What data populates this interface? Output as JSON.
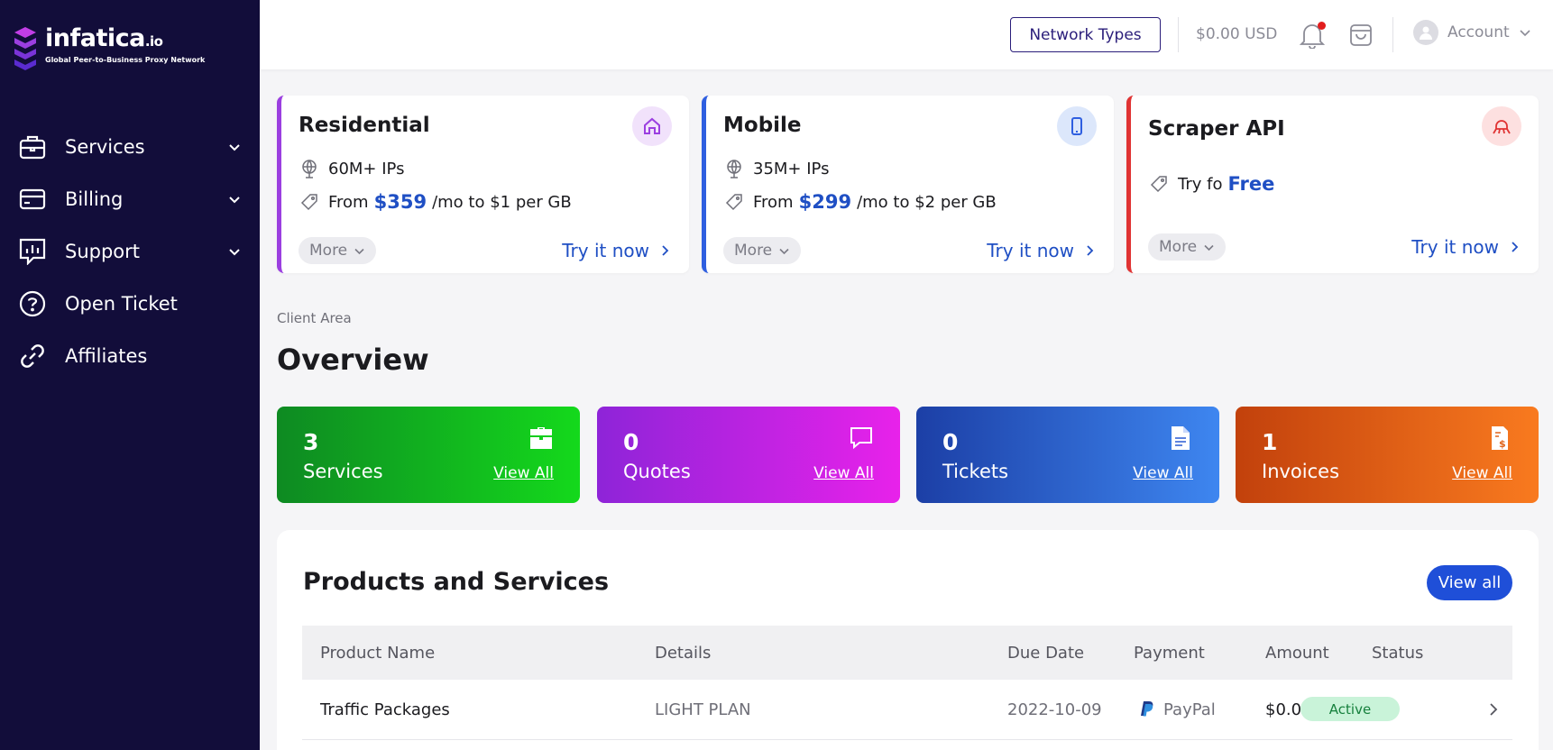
{
  "brand": {
    "name": "infatica",
    "tld": ".io",
    "tagline": "Global Peer-to-Business Proxy Network"
  },
  "sidebar": {
    "items": [
      {
        "label": "Services",
        "icon": "briefcase-icon",
        "expandable": true
      },
      {
        "label": "Billing",
        "icon": "credit-card-icon",
        "expandable": true
      },
      {
        "label": "Support",
        "icon": "chart-support-icon",
        "expandable": true
      },
      {
        "label": "Open Ticket",
        "icon": "question-circle-icon",
        "expandable": false
      },
      {
        "label": "Affiliates",
        "icon": "link-icon",
        "expandable": false
      }
    ]
  },
  "topbar": {
    "network_types_label": "Network Types",
    "balance": "$0.00 USD",
    "account_label": "Account",
    "notification_dot": true
  },
  "network_cards": [
    {
      "title": "Residential",
      "accent": "#9b3fe0",
      "badge_bg": "#f1e2fb",
      "icon": "home-icon",
      "ips": "60M+ IPs",
      "from_label": "From",
      "price": "$359",
      "price_suffix": "/mo to $1 per GB",
      "more_label": "More",
      "try_label": "Try it now"
    },
    {
      "title": "Mobile",
      "accent": "#2f5fe0",
      "badge_bg": "#dce7fb",
      "icon": "phone-icon",
      "ips": "35M+ IPs",
      "from_label": "From",
      "price": "$299",
      "price_suffix": "/mo to $2 per GB",
      "more_label": "More",
      "try_label": "Try it now"
    },
    {
      "title": "Scraper API",
      "accent": "#e03333",
      "badge_bg": "#fde0e0",
      "icon": "spider-icon",
      "try_prefix": "Try fo",
      "free_label": "Free",
      "more_label": "More",
      "try_label": "Try it now"
    }
  ],
  "breadcrumb": "Client Area",
  "page_title": "Overview",
  "stats": [
    {
      "count": "3",
      "label": "Services",
      "link": "View All",
      "icon": "briefcase-icon",
      "gradient": [
        "#0e8a22",
        "#14d91c"
      ]
    },
    {
      "count": "0",
      "label": "Quotes",
      "link": "View All",
      "icon": "chat-icon",
      "gradient": [
        "#8e24d8",
        "#e822ea"
      ]
    },
    {
      "count": "0",
      "label": "Tickets",
      "link": "View All",
      "icon": "document-icon",
      "gradient": [
        "#1c3fa6",
        "#3e86f0"
      ]
    },
    {
      "count": "1",
      "label": "Invoices",
      "link": "View All",
      "icon": "invoice-icon",
      "gradient": [
        "#c2410c",
        "#f97a1f"
      ]
    }
  ],
  "products": {
    "title": "Products and Services",
    "view_all_label": "View all",
    "columns": [
      "Product Name",
      "Details",
      "Due Date",
      "Payment",
      "Amount",
      "Status"
    ],
    "rows": [
      {
        "product": "Traffic Packages",
        "details": "LIGHT PLAN",
        "due_date": "2022-10-09",
        "payment": "PayPal",
        "amount": "$0.00",
        "status": "Active"
      }
    ]
  }
}
